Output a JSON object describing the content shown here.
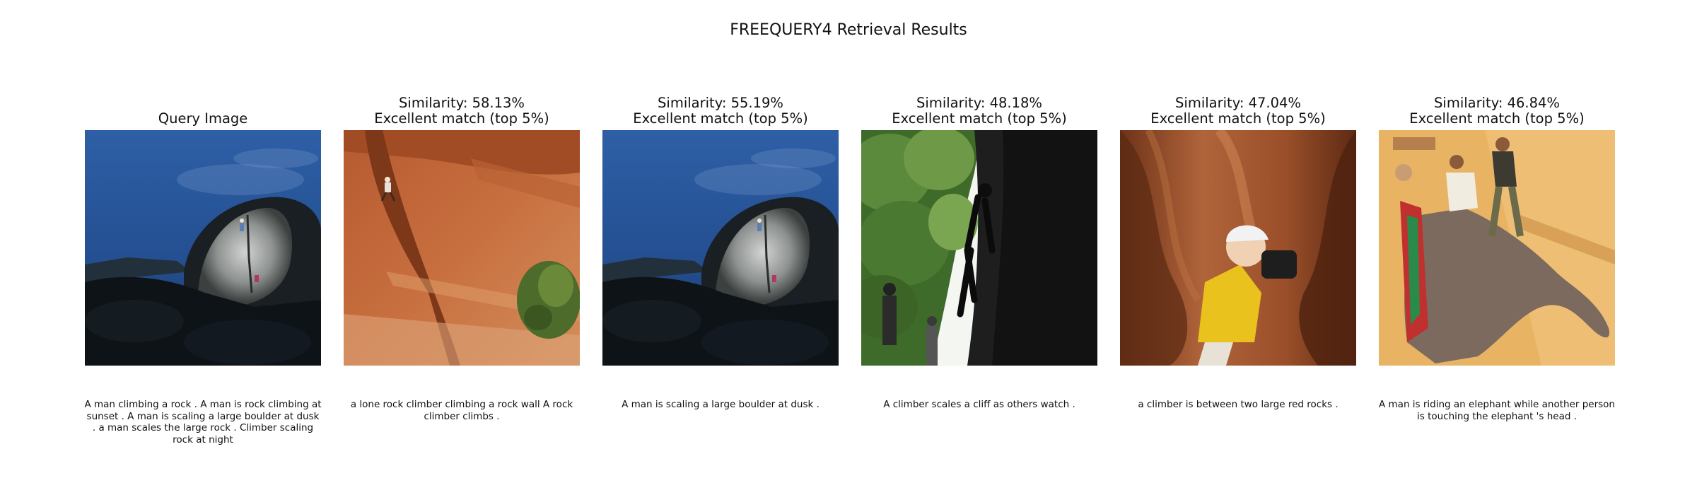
{
  "figure": {
    "title": "FREEQUERY4 Retrieval Results"
  },
  "panels": [
    {
      "kind": "query",
      "title_lines": [
        "Query Image"
      ],
      "image": "night-boulder-climber",
      "caption_lines": [
        "A man climbing a rock . A man is rock climbing at",
        "sunset . A man is scaling a large boulder at dusk",
        ". a man scales the large rock . Climber scaling",
        "rock at night"
      ]
    },
    {
      "kind": "result",
      "title_lines": [
        "Similarity: 58.13%",
        "Excellent match (top 5%)"
      ],
      "similarity": 58.13,
      "image": "red-rock-wall-climber",
      "caption_lines": [
        "a lone rock climber climbing a rock wall A rock",
        "climber climbs ."
      ]
    },
    {
      "kind": "result",
      "title_lines": [
        "Similarity: 55.19%",
        "Excellent match (top 5%)"
      ],
      "similarity": 55.19,
      "image": "night-boulder-climber",
      "caption_lines": [
        "A man is scaling a large boulder at dusk ."
      ]
    },
    {
      "kind": "result",
      "title_lines": [
        "Similarity: 48.18%",
        "Excellent match (top 5%)"
      ],
      "similarity": 48.18,
      "image": "silhouette-cliff-climber",
      "caption_lines": [
        "A climber scales a cliff as others watch ."
      ]
    },
    {
      "kind": "result",
      "title_lines": [
        "Similarity: 47.04%",
        "Excellent match (top 5%)"
      ],
      "similarity": 47.04,
      "image": "slot-canyon-climber",
      "caption_lines": [
        "a climber is between two large red rocks ."
      ]
    },
    {
      "kind": "result",
      "title_lines": [
        "Similarity: 46.84%",
        "Excellent match (top 5%)"
      ],
      "similarity": 46.84,
      "image": "elephant-rider",
      "caption_lines": [
        "A man is riding an elephant while another person",
        "is touching the elephant 's head ."
      ]
    }
  ]
}
